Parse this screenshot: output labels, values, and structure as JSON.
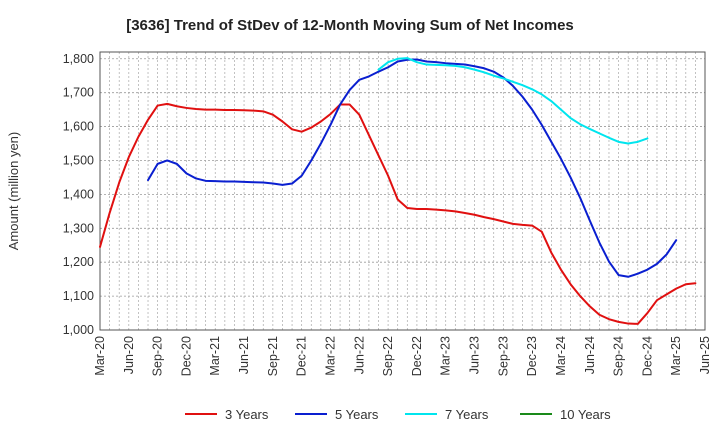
{
  "chart_data": {
    "type": "line",
    "title": "[3636]  Trend of StDev of 12-Month Moving Sum of Net Incomes",
    "xlabel": "",
    "ylabel": "Amount (million yen)",
    "ylim": [
      1000,
      1820
    ],
    "yticks": [
      1000,
      1100,
      1200,
      1300,
      1400,
      1500,
      1600,
      1700,
      1800
    ],
    "ytick_labels": [
      "1,000",
      "1,100",
      "1,200",
      "1,300",
      "1,400",
      "1,500",
      "1,600",
      "1,700",
      "1,800"
    ],
    "xlim": [
      "2020-03",
      "2025-06"
    ],
    "xtick_labels": [
      "Mar-20",
      "Jun-20",
      "Sep-20",
      "Dec-20",
      "Mar-21",
      "Jun-21",
      "Sep-21",
      "Dec-21",
      "Mar-22",
      "Jun-22",
      "Sep-22",
      "Dec-22",
      "Mar-23",
      "Jun-23",
      "Sep-23",
      "Dec-23",
      "Mar-24",
      "Jun-24",
      "Sep-24",
      "Dec-24",
      "Mar-25",
      "Jun-25"
    ],
    "grid": true,
    "legend_position": "bottom",
    "series": [
      {
        "name": "3 Years",
        "color": "#e01010",
        "start": "2020-03",
        "values": [
          1245,
          1345,
          1435,
          1510,
          1570,
          1620,
          1662,
          1667,
          1660,
          1655,
          1652,
          1650,
          1650,
          1649,
          1649,
          1648,
          1647,
          1645,
          1635,
          1615,
          1592,
          1585,
          1597,
          1615,
          1637,
          1665,
          1665,
          1635,
          1575,
          1515,
          1455,
          1385,
          1360,
          1357,
          1357,
          1355,
          1353,
          1350,
          1345,
          1340,
          1333,
          1327,
          1320,
          1313,
          1310,
          1308,
          1290,
          1228,
          1178,
          1135,
          1100,
          1070,
          1045,
          1032,
          1024,
          1019,
          1018,
          1050,
          1088,
          1105,
          1122,
          1135,
          1138
        ]
      },
      {
        "name": "5 Years",
        "color": "#0a1fd0",
        "start": "2020-08",
        "values": [
          1442,
          1490,
          1500,
          1490,
          1462,
          1447,
          1440,
          1439,
          1438,
          1438,
          1437,
          1436,
          1435,
          1432,
          1428,
          1432,
          1455,
          1500,
          1550,
          1605,
          1665,
          1708,
          1738,
          1748,
          1762,
          1775,
          1792,
          1797,
          1798,
          1792,
          1790,
          1787,
          1785,
          1783,
          1778,
          1772,
          1762,
          1745,
          1720,
          1688,
          1650,
          1605,
          1555,
          1505,
          1450,
          1390,
          1323,
          1258,
          1202,
          1162,
          1157,
          1166,
          1178,
          1195,
          1223,
          1265
        ]
      },
      {
        "name": "7 Years",
        "color": "#00e5ee",
        "start": "2022-08",
        "values": [
          1768,
          1790,
          1800,
          1802,
          1790,
          1783,
          1782,
          1781,
          1779,
          1775,
          1768,
          1760,
          1750,
          1742,
          1732,
          1722,
          1710,
          1695,
          1675,
          1650,
          1625,
          1607,
          1593,
          1580,
          1567,
          1555,
          1550,
          1555,
          1565
        ]
      },
      {
        "name": "10 Years",
        "color": "#1a8a1a",
        "start": "",
        "values": []
      }
    ]
  }
}
